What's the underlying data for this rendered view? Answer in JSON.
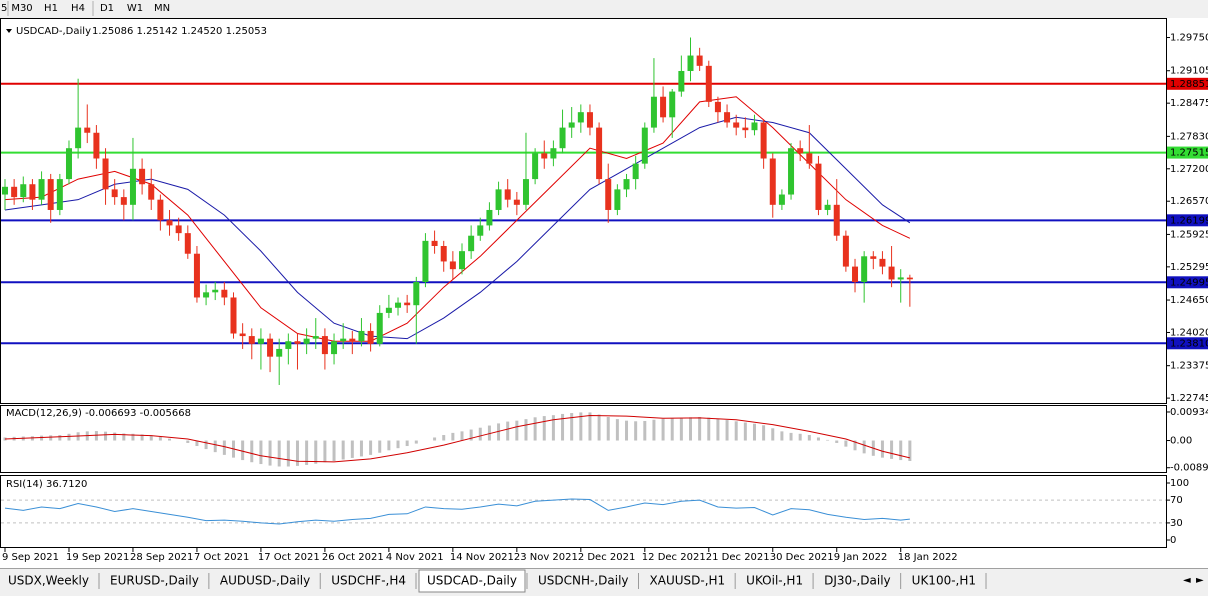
{
  "toolbar": [
    "5",
    "M30",
    "H1",
    "H4",
    "D1",
    "W1",
    "MN"
  ],
  "tabs": [
    "USDX,Weekly",
    "EURUSD-,Daily",
    "AUDUSD-,Daily",
    "USDCHF-,H4",
    "USDCAD-,Daily",
    "USDCNH-,Daily",
    "XAUUSD-,H1",
    "UKOil-,H1",
    "DJ30-,Daily",
    "UK100-,H1"
  ],
  "active_tab": 4,
  "chart_data": [
    {
      "type": "candlestick",
      "title": "USDCAD-,Daily",
      "ohlc_label": "1.25086 1.25142 1.24520 1.25053",
      "up_color": "#2fc42f",
      "down_color": "#e8321e",
      "ylim": [
        1.2265,
        1.3011
      ],
      "yticks": [
        {
          "value": 1.2975,
          "label": "1.29750"
        },
        {
          "value": 1.29105,
          "label": "1.29105"
        },
        {
          "value": 1.28475,
          "label": "1.28475"
        },
        {
          "value": 1.2783,
          "label": "1.27830"
        },
        {
          "value": 1.272,
          "label": "1.27200"
        },
        {
          "value": 1.2657,
          "label": "1.26570"
        },
        {
          "value": 1.25925,
          "label": "1.25925"
        },
        {
          "value": 1.25295,
          "label": "1.25295"
        },
        {
          "value": 1.2465,
          "label": "1.24650"
        },
        {
          "value": 1.2402,
          "label": "1.24020"
        },
        {
          "value": 1.23375,
          "label": "1.23375"
        },
        {
          "value": 1.22745,
          "label": "1.22745"
        }
      ],
      "xticks": [
        {
          "value": 0,
          "label": "9 Sep 2021"
        },
        {
          "value": 7,
          "label": "19 Sep 2021"
        },
        {
          "value": 14,
          "label": "28 Sep 2021"
        },
        {
          "value": 21,
          "label": "7 Oct 2021"
        },
        {
          "value": 28,
          "label": "17 Oct 2021"
        },
        {
          "value": 35,
          "label": "26 Oct 2021"
        },
        {
          "value": 42,
          "label": "4 Nov 2021"
        },
        {
          "value": 49,
          "label": "14 Nov 2021"
        },
        {
          "value": 56,
          "label": "23 Nov 2021"
        },
        {
          "value": 63,
          "label": "2 Dec 2021"
        },
        {
          "value": 70,
          "label": "12 Dec 2021"
        },
        {
          "value": 77,
          "label": "21 Dec 2021"
        },
        {
          "value": 84,
          "label": "30 Dec 2021"
        },
        {
          "value": 91,
          "label": "9 Jan 2022"
        },
        {
          "value": 98,
          "label": "18 Jan 2022"
        }
      ],
      "hlines": [
        {
          "value": 1.28851,
          "color": "#e00000",
          "text_color": "#ffffff"
        },
        {
          "value": 1.27515,
          "color": "#33dd33",
          "text_color": "#000000"
        },
        {
          "value": 1.26199,
          "color": "#1010c0",
          "text_color": "#ffffff"
        },
        {
          "value": 1.24995,
          "color": "#1010c0",
          "text_color": "#ffffff"
        },
        {
          "value": 1.2381,
          "label": "1.23810",
          "color": "#1010c0",
          "text_color": "#ffffff"
        }
      ],
      "overlays": [
        {
          "color": "#e00000",
          "x": [
            0,
            4,
            8,
            12,
            16,
            20,
            24,
            28,
            32,
            36,
            40,
            44,
            48,
            52,
            56,
            60,
            64,
            68,
            72,
            76,
            80,
            84,
            88,
            92,
            96,
            99
          ],
          "values": [
            1.266,
            1.2665,
            1.27,
            1.2715,
            1.269,
            1.263,
            1.254,
            1.245,
            1.24,
            1.2385,
            1.2385,
            1.242,
            1.249,
            1.255,
            1.262,
            1.269,
            1.276,
            1.274,
            1.277,
            1.285,
            1.286,
            1.28,
            1.273,
            1.266,
            1.261,
            1.2585
          ]
        },
        {
          "color": "#1a1aa8",
          "x": [
            0,
            4,
            8,
            12,
            16,
            20,
            24,
            28,
            32,
            36,
            40,
            44,
            48,
            52,
            56,
            60,
            64,
            68,
            72,
            76,
            80,
            84,
            88,
            92,
            96,
            99
          ],
          "values": [
            1.264,
            1.265,
            1.266,
            1.269,
            1.27,
            1.268,
            1.263,
            1.256,
            1.248,
            1.242,
            1.2395,
            1.239,
            1.243,
            1.248,
            1.254,
            1.261,
            1.268,
            1.272,
            1.276,
            1.28,
            1.282,
            1.281,
            1.279,
            1.272,
            1.265,
            1.2615
          ]
        }
      ],
      "ohlc": [
        [
          1.267,
          1.27,
          1.264,
          1.2685
        ],
        [
          1.2685,
          1.27,
          1.265,
          1.2665
        ],
        [
          1.2665,
          1.2705,
          1.2655,
          1.269
        ],
        [
          1.269,
          1.27,
          1.264,
          1.266
        ],
        [
          1.266,
          1.2715,
          1.265,
          1.27
        ],
        [
          1.27,
          1.271,
          1.2615,
          1.264
        ],
        [
          1.264,
          1.271,
          1.263,
          1.27
        ],
        [
          1.27,
          1.2775,
          1.269,
          1.276
        ],
        [
          1.276,
          1.2895,
          1.274,
          1.28
        ],
        [
          1.28,
          1.2845,
          1.277,
          1.279
        ],
        [
          1.279,
          1.2805,
          1.272,
          1.274
        ],
        [
          1.274,
          1.276,
          1.265,
          1.268
        ],
        [
          1.268,
          1.27,
          1.265,
          1.2665
        ],
        [
          1.2665,
          1.268,
          1.262,
          1.265
        ],
        [
          1.265,
          1.278,
          1.262,
          1.272
        ],
        [
          1.272,
          1.274,
          1.267,
          1.269
        ],
        [
          1.269,
          1.272,
          1.264,
          1.266
        ],
        [
          1.266,
          1.267,
          1.26,
          1.262
        ],
        [
          1.262,
          1.264,
          1.259,
          1.261
        ],
        [
          1.261,
          1.2625,
          1.258,
          1.2595
        ],
        [
          1.2595,
          1.261,
          1.2545,
          1.2555
        ],
        [
          1.2555,
          1.257,
          1.246,
          1.247
        ],
        [
          1.247,
          1.2495,
          1.2455,
          1.248
        ],
        [
          1.248,
          1.25,
          1.2465,
          1.2485
        ],
        [
          1.2485,
          1.25,
          1.2455,
          1.247
        ],
        [
          1.247,
          1.248,
          1.239,
          1.24
        ],
        [
          1.24,
          1.242,
          1.237,
          1.2395
        ],
        [
          1.2395,
          1.241,
          1.235,
          1.238
        ],
        [
          1.238,
          1.241,
          1.233,
          1.239
        ],
        [
          1.239,
          1.24,
          1.2325,
          1.2355
        ],
        [
          1.2355,
          1.239,
          1.23,
          1.237
        ],
        [
          1.237,
          1.24,
          1.234,
          1.2385
        ],
        [
          1.2385,
          1.24,
          1.233,
          1.238
        ],
        [
          1.238,
          1.241,
          1.236,
          1.239
        ],
        [
          1.239,
          1.243,
          1.237,
          1.2395
        ],
        [
          1.2395,
          1.241,
          1.233,
          1.236
        ],
        [
          1.236,
          1.24,
          1.234,
          1.2385
        ],
        [
          1.2385,
          1.242,
          1.237,
          1.239
        ],
        [
          1.239,
          1.2405,
          1.236,
          1.2385
        ],
        [
          1.2385,
          1.243,
          1.2375,
          1.2405
        ],
        [
          1.2405,
          1.242,
          1.2365,
          1.238
        ],
        [
          1.238,
          1.2455,
          1.2375,
          1.244
        ],
        [
          1.244,
          1.2475,
          1.243,
          1.245
        ],
        [
          1.245,
          1.247,
          1.2435,
          1.246
        ],
        [
          1.246,
          1.2475,
          1.244,
          1.2455
        ],
        [
          1.2455,
          1.251,
          1.238,
          1.25
        ],
        [
          1.25,
          1.2595,
          1.249,
          1.258
        ],
        [
          1.258,
          1.26,
          1.2555,
          1.257
        ],
        [
          1.257,
          1.258,
          1.252,
          1.254
        ],
        [
          1.254,
          1.256,
          1.2505,
          1.2525
        ],
        [
          1.2525,
          1.2575,
          1.2515,
          1.256
        ],
        [
          1.256,
          1.261,
          1.2545,
          1.259
        ],
        [
          1.259,
          1.2625,
          1.258,
          1.261
        ],
        [
          1.261,
          1.2655,
          1.26,
          1.264
        ],
        [
          1.264,
          1.2695,
          1.263,
          1.268
        ],
        [
          1.268,
          1.27,
          1.2645,
          1.266
        ],
        [
          1.266,
          1.2675,
          1.263,
          1.265
        ],
        [
          1.265,
          1.279,
          1.264,
          1.27
        ],
        [
          1.27,
          1.276,
          1.269,
          1.275
        ],
        [
          1.275,
          1.2775,
          1.272,
          1.274
        ],
        [
          1.274,
          1.2775,
          1.2725,
          1.276
        ],
        [
          1.276,
          1.2835,
          1.275,
          1.28
        ],
        [
          1.28,
          1.284,
          1.278,
          1.281
        ],
        [
          1.281,
          1.2845,
          1.279,
          1.283
        ],
        [
          1.283,
          1.2845,
          1.2785,
          1.28
        ],
        [
          1.28,
          1.281,
          1.269,
          1.27
        ],
        [
          1.27,
          1.273,
          1.2615,
          1.264
        ],
        [
          1.264,
          1.269,
          1.263,
          1.268
        ],
        [
          1.268,
          1.271,
          1.2665,
          1.27
        ],
        [
          1.27,
          1.2745,
          1.268,
          1.273
        ],
        [
          1.273,
          1.281,
          1.272,
          1.28
        ],
        [
          1.28,
          1.2935,
          1.279,
          1.286
        ],
        [
          1.286,
          1.288,
          1.281,
          1.282
        ],
        [
          1.282,
          1.2875,
          1.278,
          1.287
        ],
        [
          1.287,
          1.294,
          1.286,
          1.291
        ],
        [
          1.291,
          1.2975,
          1.289,
          1.294
        ],
        [
          1.294,
          1.2955,
          1.291,
          1.292
        ],
        [
          1.292,
          1.293,
          1.284,
          1.285
        ],
        [
          1.285,
          1.286,
          1.281,
          1.283
        ],
        [
          1.283,
          1.2845,
          1.28,
          1.281
        ],
        [
          1.281,
          1.2825,
          1.2785,
          1.28
        ],
        [
          1.28,
          1.282,
          1.278,
          1.2795
        ],
        [
          1.2795,
          1.2825,
          1.2785,
          1.281
        ],
        [
          1.281,
          1.2815,
          1.272,
          1.274
        ],
        [
          1.274,
          1.275,
          1.2625,
          1.265
        ],
        [
          1.265,
          1.268,
          1.264,
          1.267
        ],
        [
          1.267,
          1.277,
          1.266,
          1.276
        ],
        [
          1.276,
          1.2775,
          1.2735,
          1.275
        ],
        [
          1.275,
          1.2805,
          1.272,
          1.273
        ],
        [
          1.273,
          1.2745,
          1.263,
          1.264
        ],
        [
          1.264,
          1.266,
          1.263,
          1.265
        ],
        [
          1.265,
          1.27,
          1.258,
          1.259
        ],
        [
          1.259,
          1.26,
          1.252,
          1.253
        ],
        [
          1.253,
          1.2545,
          1.248,
          1.25
        ],
        [
          1.25,
          1.256,
          1.246,
          1.255
        ],
        [
          1.255,
          1.256,
          1.2525,
          1.2545
        ],
        [
          1.2545,
          1.256,
          1.2515,
          1.253
        ],
        [
          1.253,
          1.257,
          1.249,
          1.2505
        ],
        [
          1.2505,
          1.2525,
          1.246,
          1.2509
        ],
        [
          1.25086,
          1.25142,
          1.2452,
          1.25053
        ]
      ]
    },
    {
      "type": "macd",
      "title": "MACD(12,26,9) -0.006693 -0.005668",
      "ylim": [
        -0.0103,
        0.0113
      ],
      "yticks": [
        0.009345,
        {
          "value": 0,
          "label": "0.00"
        },
        -0.008902
      ],
      "hist_color": "#c0c0c0",
      "signal_color": "#d00000",
      "values": [
        0.001,
        0.0012,
        0.0013,
        0.0014,
        0.0016,
        0.0017,
        0.0018,
        0.0022,
        0.0027,
        0.003,
        0.0031,
        0.0029,
        0.0026,
        0.0023,
        0.0022,
        0.002,
        0.0017,
        0.0012,
        0.0006,
        0.0,
        -0.0008,
        -0.0018,
        -0.0028,
        -0.0038,
        -0.0047,
        -0.0056,
        -0.0064,
        -0.0071,
        -0.0077,
        -0.0082,
        -0.0085,
        -0.0085,
        -0.0083,
        -0.008,
        -0.0076,
        -0.0071,
        -0.0067,
        -0.0062,
        -0.0057,
        -0.0052,
        -0.0047,
        -0.004,
        -0.0032,
        -0.0025,
        -0.0018,
        -0.001,
        0.0,
        0.001,
        0.0018,
        0.0025,
        0.003,
        0.0036,
        0.0042,
        0.0049,
        0.0056,
        0.0062,
        0.0065,
        0.007,
        0.0076,
        0.008,
        0.0083,
        0.0087,
        0.009,
        0.0092,
        0.0092,
        0.0085,
        0.0077,
        0.007,
        0.0065,
        0.0063,
        0.0064,
        0.0068,
        0.0071,
        0.0072,
        0.0074,
        0.0076,
        0.0077,
        0.0075,
        0.0071,
        0.0067,
        0.0063,
        0.0059,
        0.0055,
        0.005,
        0.004,
        0.003,
        0.0025,
        0.0022,
        0.0018,
        0.001,
        0.0002,
        -0.0008,
        -0.002,
        -0.0032,
        -0.0042,
        -0.005,
        -0.0056,
        -0.006,
        -0.0064,
        -0.006693
      ],
      "signal": {
        "x": [
          0,
          4,
          8,
          12,
          16,
          20,
          24,
          28,
          32,
          36,
          40,
          44,
          48,
          52,
          56,
          60,
          64,
          68,
          72,
          76,
          80,
          84,
          88,
          92,
          96,
          99
        ],
        "values": [
          0.0005,
          0.001,
          0.0015,
          0.002,
          0.0016,
          0.0005,
          -0.002,
          -0.005,
          -0.0068,
          -0.007,
          -0.006,
          -0.004,
          -0.0015,
          0.0015,
          0.0045,
          0.0068,
          0.0082,
          0.008,
          0.0073,
          0.0074,
          0.0068,
          0.0052,
          0.003,
          0.0005,
          -0.0035,
          -0.005668
        ]
      }
    },
    {
      "type": "line",
      "title": "RSI(14) 36.7120",
      "ylim": [
        -14,
        112.3
      ],
      "yticks": [
        100,
        70,
        30,
        0
      ],
      "levels": [
        70,
        30
      ],
      "color": "#3a8fd6",
      "x": [
        0,
        2,
        4,
        6,
        8,
        10,
        12,
        14,
        16,
        18,
        20,
        22,
        24,
        26,
        28,
        30,
        32,
        34,
        36,
        38,
        40,
        42,
        44,
        46,
        48,
        50,
        52,
        54,
        56,
        58,
        60,
        62,
        64,
        66,
        68,
        70,
        72,
        74,
        76,
        78,
        80,
        82,
        84,
        86,
        88,
        90,
        92,
        94,
        96,
        98,
        99
      ],
      "values": [
        56,
        52,
        58,
        55,
        64,
        58,
        50,
        55,
        50,
        45,
        40,
        34,
        35,
        33,
        30,
        28,
        32,
        35,
        33,
        36,
        38,
        45,
        46,
        58,
        55,
        54,
        58,
        63,
        60,
        68,
        70,
        72,
        71,
        52,
        58,
        65,
        62,
        68,
        70,
        58,
        56,
        57,
        44,
        55,
        53,
        45,
        40,
        36,
        38,
        35,
        36.712
      ]
    }
  ]
}
